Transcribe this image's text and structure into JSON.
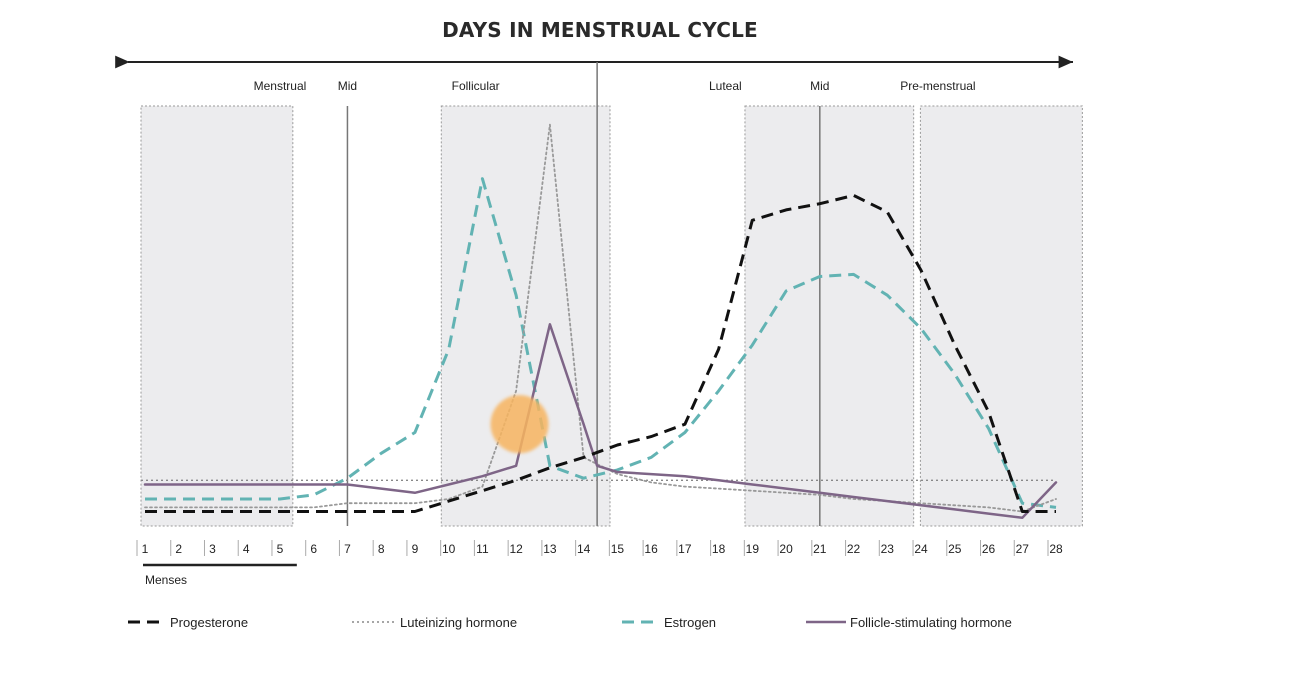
{
  "chart_data": {
    "type": "line",
    "title": "DAYS IN MENSTRUAL CYCLE",
    "x": [
      1,
      2,
      3,
      4,
      5,
      6,
      7,
      8,
      9,
      10,
      11,
      12,
      13,
      14,
      15,
      16,
      17,
      18,
      19,
      20,
      21,
      22,
      23,
      24,
      25,
      26,
      27,
      28
    ],
    "x_ticks": [
      "1",
      "2",
      "3",
      "4",
      "5",
      "6",
      "7",
      "8",
      "9",
      "10",
      "11",
      "12",
      "13",
      "14",
      "15",
      "16",
      "17",
      "18",
      "19",
      "20",
      "21",
      "22",
      "23",
      "24",
      "25",
      "26",
      "27",
      "28"
    ],
    "phases": [
      {
        "label": "Menstrual",
        "day": 5
      },
      {
        "label": "Mid",
        "day": 7
      },
      {
        "label": "Follicular",
        "day": 10.8
      },
      {
        "label": "Luteal",
        "day": 18.2
      },
      {
        "label": "Mid",
        "day": 21
      },
      {
        "label": "Pre-menstrual",
        "day": 24.5
      }
    ],
    "shaded_ranges": [
      [
        1,
        5.5
      ],
      [
        9.9,
        14.9
      ],
      [
        18.9,
        23.9
      ],
      [
        24.1,
        28.9
      ]
    ],
    "vertical_lines": [
      7,
      14.4,
      21
    ],
    "baseline_level": 1.05,
    "annotation": {
      "label": "Menses",
      "range": [
        1,
        5.5
      ]
    },
    "marker": {
      "day": 12.1,
      "value": 2.4,
      "color": "#f7b45f"
    },
    "ylim": [
      0,
      10
    ],
    "grid": false,
    "legend_position": "bottom",
    "series": [
      {
        "name": "Progesterone",
        "color": "#111111",
        "style": "dashed",
        "points": [
          [
            1,
            0.3
          ],
          [
            2,
            0.3
          ],
          [
            3,
            0.3
          ],
          [
            4,
            0.3
          ],
          [
            5,
            0.3
          ],
          [
            6,
            0.3
          ],
          [
            7,
            0.3
          ],
          [
            8,
            0.3
          ],
          [
            9,
            0.3
          ],
          [
            10,
            0.55
          ],
          [
            11,
            0.8
          ],
          [
            12,
            1.05
          ],
          [
            13,
            1.35
          ],
          [
            14,
            1.6
          ],
          [
            15,
            1.9
          ],
          [
            16,
            2.1
          ],
          [
            17,
            2.4
          ],
          [
            18,
            4.2
          ],
          [
            19,
            7.3
          ],
          [
            20,
            7.55
          ],
          [
            21,
            7.7
          ],
          [
            22,
            7.9
          ],
          [
            23,
            7.5
          ],
          [
            24,
            6.1
          ],
          [
            25,
            4.3
          ],
          [
            26,
            2.7
          ],
          [
            27,
            0.3
          ],
          [
            28,
            0.3
          ]
        ]
      },
      {
        "name": "Luteinizing hormone",
        "color": "#999999",
        "style": "dotted",
        "points": [
          [
            1,
            0.4
          ],
          [
            2,
            0.4
          ],
          [
            3,
            0.4
          ],
          [
            4,
            0.4
          ],
          [
            5,
            0.4
          ],
          [
            6,
            0.4
          ],
          [
            7,
            0.5
          ],
          [
            8,
            0.5
          ],
          [
            9,
            0.5
          ],
          [
            10,
            0.6
          ],
          [
            11,
            0.9
          ],
          [
            12,
            3.2
          ],
          [
            13,
            9.6
          ],
          [
            14,
            1.6
          ],
          [
            15,
            1.2
          ],
          [
            16,
            1.0
          ],
          [
            17,
            0.9
          ],
          [
            18,
            0.85
          ],
          [
            19,
            0.8
          ],
          [
            20,
            0.75
          ],
          [
            21,
            0.7
          ],
          [
            22,
            0.6
          ],
          [
            23,
            0.55
          ],
          [
            24,
            0.5
          ],
          [
            25,
            0.45
          ],
          [
            26,
            0.4
          ],
          [
            27,
            0.3
          ],
          [
            28,
            0.6
          ]
        ]
      },
      {
        "name": "Estrogen",
        "color": "#62b3b3",
        "style": "dashed",
        "points": [
          [
            1,
            0.6
          ],
          [
            2,
            0.6
          ],
          [
            3,
            0.6
          ],
          [
            4,
            0.6
          ],
          [
            5,
            0.6
          ],
          [
            6,
            0.7
          ],
          [
            7,
            1.1
          ],
          [
            8,
            1.7
          ],
          [
            9,
            2.2
          ],
          [
            10,
            4.2
          ],
          [
            11,
            8.3
          ],
          [
            12,
            5.5
          ],
          [
            13,
            1.4
          ],
          [
            14,
            1.1
          ],
          [
            15,
            1.3
          ],
          [
            16,
            1.6
          ],
          [
            17,
            2.2
          ],
          [
            18,
            3.2
          ],
          [
            19,
            4.3
          ],
          [
            20,
            5.6
          ],
          [
            21,
            5.95
          ],
          [
            22,
            6.0
          ],
          [
            23,
            5.5
          ],
          [
            24,
            4.7
          ],
          [
            25,
            3.6
          ],
          [
            26,
            2.3
          ],
          [
            27,
            0.5
          ],
          [
            28,
            0.4
          ]
        ]
      },
      {
        "name": "Follicle-stimulating hormone",
        "color": "#7e6587",
        "style": "solid",
        "points": [
          [
            1,
            0.95
          ],
          [
            2,
            0.95
          ],
          [
            3,
            0.95
          ],
          [
            4,
            0.95
          ],
          [
            5,
            0.95
          ],
          [
            6,
            0.95
          ],
          [
            7,
            0.95
          ],
          [
            8,
            0.85
          ],
          [
            9,
            0.75
          ],
          [
            10,
            0.95
          ],
          [
            11,
            1.15
          ],
          [
            12,
            1.4
          ],
          [
            13,
            4.8
          ],
          [
            14,
            2.4
          ],
          [
            14.4,
            1.4
          ],
          [
            15,
            1.25
          ],
          [
            16,
            1.2
          ],
          [
            17,
            1.15
          ],
          [
            18,
            1.05
          ],
          [
            19,
            0.95
          ],
          [
            20,
            0.85
          ],
          [
            21,
            0.75
          ],
          [
            22,
            0.65
          ],
          [
            23,
            0.55
          ],
          [
            24,
            0.45
          ],
          [
            25,
            0.35
          ],
          [
            26,
            0.25
          ],
          [
            27,
            0.15
          ],
          [
            28,
            1.0
          ]
        ]
      }
    ]
  }
}
